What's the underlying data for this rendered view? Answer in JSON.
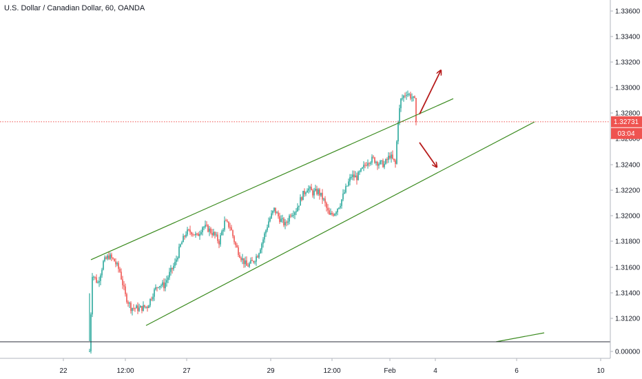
{
  "header": {
    "title": "U.S. Dollar / Canadian Dollar, 60, OANDA"
  },
  "price_axis": {
    "ticks": [
      "1.33600",
      "1.33400",
      "1.33200",
      "1.33000",
      "1.32800",
      "1.32600",
      "1.32400",
      "1.32200",
      "1.32000",
      "1.31800",
      "1.31600",
      "1.31400",
      "1.31200",
      "0.00000"
    ],
    "current_price_label": "1.32731",
    "countdown_label": "03:04"
  },
  "time_axis": {
    "ticks": [
      "22",
      "12:00",
      "27",
      "29",
      "12:00",
      "Feb",
      "4",
      "6",
      "10"
    ]
  },
  "colors": {
    "up": "#26a69a",
    "down": "#ef5350",
    "trendline": "#3a8a1e",
    "arrow": "#b71c1c",
    "price_line": "#ef5350"
  },
  "chart_data": {
    "type": "candlestick",
    "title": "U.S. Dollar / Canadian Dollar, 60, OANDA",
    "ylim": [
      1.3095,
      1.3365
    ],
    "current_price": 1.32731,
    "close_path": [
      [
        0,
        1.3095
      ],
      [
        2,
        1.3155
      ],
      [
        6,
        1.3148
      ],
      [
        10,
        1.3164
      ],
      [
        14,
        1.3169
      ],
      [
        18,
        1.3165
      ],
      [
        22,
        1.3157
      ],
      [
        26,
        1.3138
      ],
      [
        30,
        1.3129
      ],
      [
        36,
        1.3128
      ],
      [
        42,
        1.313
      ],
      [
        46,
        1.314
      ],
      [
        50,
        1.3147
      ],
      [
        54,
        1.3146
      ],
      [
        58,
        1.3155
      ],
      [
        62,
        1.3163
      ],
      [
        66,
        1.3177
      ],
      [
        70,
        1.3187
      ],
      [
        74,
        1.3188
      ],
      [
        78,
        1.3184
      ],
      [
        82,
        1.3192
      ],
      [
        86,
        1.319
      ],
      [
        90,
        1.3186
      ],
      [
        94,
        1.318
      ],
      [
        98,
        1.3195
      ],
      [
        102,
        1.3192
      ],
      [
        106,
        1.3177
      ],
      [
        110,
        1.3168
      ],
      [
        114,
        1.3161
      ],
      [
        118,
        1.3164
      ],
      [
        122,
        1.317
      ],
      [
        126,
        1.3182
      ],
      [
        130,
        1.3196
      ],
      [
        134,
        1.3205
      ],
      [
        138,
        1.3198
      ],
      [
        142,
        1.3193
      ],
      [
        146,
        1.3202
      ],
      [
        150,
        1.3205
      ],
      [
        154,
        1.3215
      ],
      [
        158,
        1.3222
      ],
      [
        162,
        1.3218
      ],
      [
        166,
        1.3219
      ],
      [
        170,
        1.3212
      ],
      [
        174,
        1.32
      ],
      [
        178,
        1.3203
      ],
      [
        182,
        1.321
      ],
      [
        186,
        1.3221
      ],
      [
        190,
        1.3231
      ],
      [
        194,
        1.323
      ],
      [
        198,
        1.3236
      ],
      [
        202,
        1.3243
      ],
      [
        206,
        1.3244
      ],
      [
        210,
        1.3241
      ],
      [
        214,
        1.324
      ],
      [
        218,
        1.3247
      ],
      [
        222,
        1.324
      ],
      [
        224,
        1.3275
      ],
      [
        226,
        1.329
      ],
      [
        230,
        1.3296
      ],
      [
        234,
        1.3292
      ],
      [
        236,
        1.3289
      ],
      [
        237,
        1.3273
      ]
    ],
    "trendlines": [
      {
        "from": [
          1,
          1.3166
        ],
        "to": [
          264,
          1.3291
        ]
      },
      {
        "from": [
          41,
          1.3115
        ],
        "to": [
          323,
          1.3273
        ]
      },
      {
        "from": [
          295,
          1.3055
        ],
        "to": [
          330,
          1.3061
        ]
      }
    ],
    "arrows": [
      {
        "from": [
          238,
          1.3279
        ],
        "to": [
          255,
          1.3313
        ]
      },
      {
        "from": [
          238,
          1.3257
        ],
        "to": [
          252,
          1.3238
        ]
      }
    ]
  }
}
